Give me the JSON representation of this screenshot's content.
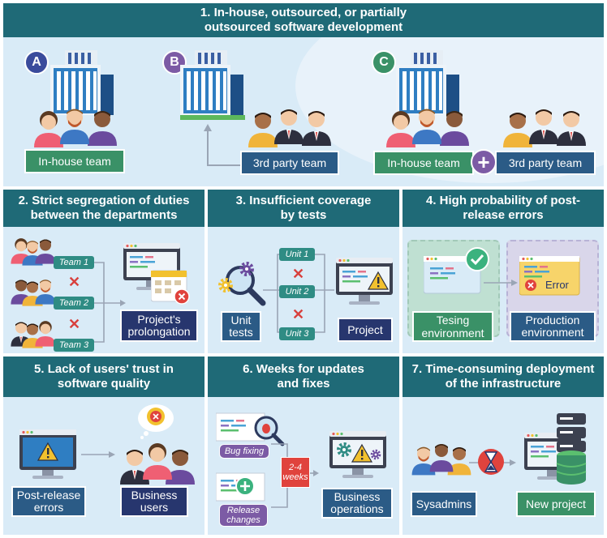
{
  "sections": {
    "s1": {
      "title": "1. In-house, outsourced, or partially outsourced software development",
      "badges": [
        "A",
        "B",
        "C"
      ],
      "in_house_label": "In-house team",
      "third_party_label": "3rd party team",
      "plus_glyph": "+"
    },
    "s2": {
      "title": "2. Strict segregation of duties between the departments",
      "teams": [
        "Team 1",
        "Team 2",
        "Team 3"
      ],
      "result_label": "Project's prolongation"
    },
    "s3": {
      "title": "3. Insufficient coverage by tests",
      "units": [
        "Unit 1",
        "Unit 2",
        "Unit 3"
      ],
      "unit_tests_label": "Unit tests",
      "project_label": "Project"
    },
    "s4": {
      "title": "4. High probability of post-release errors",
      "error_text": "Error",
      "testing_label": "Tesing environment",
      "production_label": "Production environment"
    },
    "s5": {
      "title": "5. Lack of users' trust in software quality",
      "errors_label": "Post-release errors",
      "users_label": "Business users"
    },
    "s6": {
      "title": "6. Weeks for updates and fixes",
      "bug_label": "Bug fixing",
      "release_label": "Release changes",
      "range_label": "2-4 weeks",
      "ops_label": "Business operations"
    },
    "s7": {
      "title": "7. Time-consuming deployment of the infrastructure",
      "sysadmins_label": "Sysadmins",
      "new_project_label": "New project"
    }
  },
  "colors": {
    "header_teal": "#1f6a77",
    "panel_bg": "#d9ebf7",
    "green": "#3a9167",
    "blue": "#2b5b86",
    "navy": "#27366e",
    "purple": "#7c5ba5",
    "red": "#d8403d",
    "warning_yellow": "#f2c12e"
  },
  "icons": [
    "building-icon",
    "people-group-icon",
    "monitor-icon",
    "warning-icon",
    "gear-icon",
    "magnifier-icon",
    "bug-icon",
    "hourglass-icon",
    "server-icon",
    "database-icon",
    "calendar-icon",
    "check-icon",
    "award-icon"
  ]
}
